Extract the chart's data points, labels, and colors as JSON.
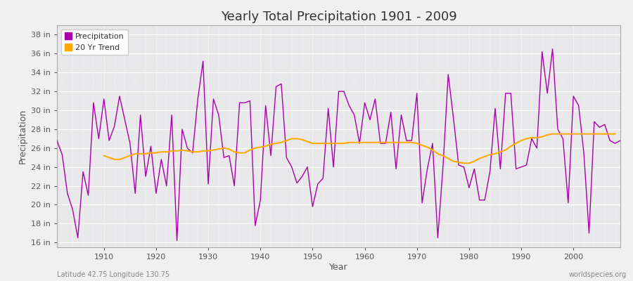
{
  "title": "Yearly Total Precipitation 1901 - 2009",
  "xlabel": "Year",
  "ylabel": "Precipitation",
  "subtitle_left": "Latitude 42.75 Longitude 130.75",
  "subtitle_right": "worldspecies.org",
  "precip_color": "#aa00aa",
  "trend_color": "#ffaa00",
  "fig_bg_color": "#f0f0f0",
  "plot_bg_color": "#e8e8ea",
  "ylim": [
    15.5,
    39.0
  ],
  "yticks": [
    16,
    18,
    20,
    22,
    24,
    26,
    28,
    30,
    32,
    34,
    36,
    38
  ],
  "xlim": [
    1901,
    2009
  ],
  "xticks": [
    1910,
    1920,
    1930,
    1940,
    1950,
    1960,
    1970,
    1980,
    1990,
    2000
  ],
  "years": [
    1901,
    1902,
    1903,
    1904,
    1905,
    1906,
    1907,
    1908,
    1909,
    1910,
    1911,
    1912,
    1913,
    1914,
    1915,
    1916,
    1917,
    1918,
    1919,
    1920,
    1921,
    1922,
    1923,
    1924,
    1925,
    1926,
    1927,
    1928,
    1929,
    1930,
    1931,
    1932,
    1933,
    1934,
    1935,
    1936,
    1937,
    1938,
    1939,
    1940,
    1941,
    1942,
    1943,
    1944,
    1945,
    1946,
    1947,
    1948,
    1949,
    1950,
    1951,
    1952,
    1953,
    1954,
    1955,
    1956,
    1957,
    1958,
    1959,
    1960,
    1961,
    1962,
    1963,
    1964,
    1965,
    1966,
    1967,
    1968,
    1969,
    1970,
    1971,
    1972,
    1973,
    1974,
    1975,
    1976,
    1977,
    1978,
    1979,
    1980,
    1981,
    1982,
    1983,
    1984,
    1985,
    1986,
    1987,
    1988,
    1989,
    1990,
    1991,
    1992,
    1993,
    1994,
    1995,
    1996,
    1997,
    1998,
    1999,
    2000,
    2001,
    2002,
    2003,
    2004,
    2005,
    2006,
    2007,
    2008,
    2009
  ],
  "precip": [
    26.8,
    25.3,
    21.2,
    19.5,
    16.5,
    23.5,
    21.0,
    30.8,
    27.0,
    31.2,
    26.8,
    28.3,
    31.5,
    29.0,
    26.5,
    21.2,
    29.5,
    23.0,
    26.2,
    21.2,
    24.8,
    22.0,
    29.5,
    16.2,
    28.0,
    26.0,
    25.5,
    31.2,
    35.2,
    22.2,
    31.2,
    29.5,
    25.0,
    25.2,
    22.0,
    30.8,
    30.8,
    31.0,
    17.8,
    20.5,
    30.5,
    25.2,
    32.5,
    32.8,
    25.0,
    24.0,
    22.3,
    23.0,
    24.0,
    19.8,
    22.2,
    22.8,
    30.2,
    24.0,
    32.0,
    32.0,
    30.5,
    29.5,
    26.5,
    30.8,
    29.0,
    31.2,
    26.5,
    26.5,
    29.8,
    23.8,
    29.5,
    26.8,
    26.8,
    31.8,
    20.2,
    23.8,
    26.5,
    16.5,
    24.0,
    33.8,
    29.2,
    24.2,
    24.0,
    21.8,
    23.8,
    20.5,
    20.5,
    23.5,
    30.2,
    23.8,
    31.8,
    31.8,
    23.8,
    24.0,
    24.2,
    27.0,
    26.0,
    36.2,
    31.8,
    36.5,
    28.0,
    27.0,
    20.2,
    31.5,
    30.5,
    25.5,
    17.0,
    28.8,
    28.2,
    28.5,
    26.8,
    26.5,
    26.8
  ],
  "trend": [
    null,
    null,
    null,
    null,
    null,
    null,
    null,
    null,
    null,
    25.2,
    25.0,
    24.8,
    24.8,
    25.0,
    25.2,
    25.4,
    25.4,
    25.4,
    25.5,
    25.5,
    25.6,
    25.6,
    25.7,
    25.7,
    25.8,
    25.7,
    25.6,
    25.6,
    25.7,
    25.7,
    25.8,
    25.9,
    26.0,
    25.9,
    25.6,
    25.5,
    25.5,
    25.8,
    26.0,
    26.1,
    26.2,
    26.4,
    26.5,
    26.6,
    26.8,
    27.0,
    27.0,
    26.9,
    26.7,
    26.5,
    26.5,
    26.5,
    26.5,
    26.5,
    26.5,
    26.5,
    26.6,
    26.6,
    26.6,
    26.6,
    26.6,
    26.6,
    26.6,
    26.6,
    26.6,
    26.6,
    26.6,
    26.6,
    26.6,
    26.5,
    26.3,
    26.1,
    25.8,
    25.4,
    25.2,
    24.9,
    24.6,
    24.5,
    24.4,
    24.4,
    24.6,
    24.9,
    25.1,
    25.3,
    25.4,
    25.6,
    25.8,
    26.2,
    26.5,
    26.8,
    27.0,
    27.1,
    27.1,
    27.2,
    27.4,
    27.5,
    27.5,
    27.5,
    27.5,
    27.5,
    27.5,
    27.5,
    27.5,
    27.5,
    27.5,
    27.5,
    27.5,
    27.5
  ]
}
